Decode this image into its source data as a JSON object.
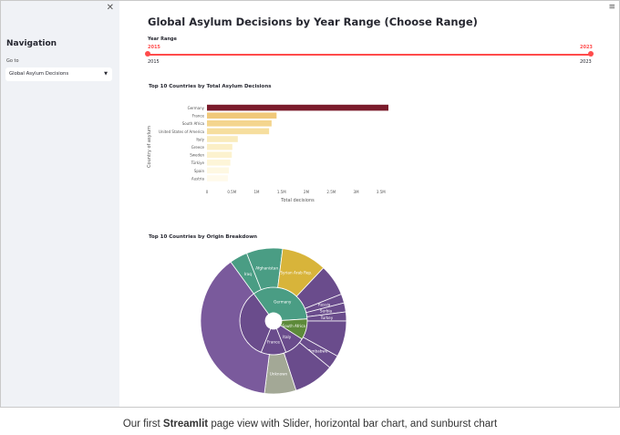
{
  "sidebar": {
    "close_icon": "close-icon",
    "nav_title": "Navigation",
    "goto_label": "Go to",
    "selected_page": "Global Asylum Decisions",
    "chevron_icon": "chevron-down-icon"
  },
  "main": {
    "menu_icon": "hamburger-menu-icon",
    "title": "Global Asylum Decisions by Year Range (Choose Range)"
  },
  "slider": {
    "label": "Year Range",
    "min": "2015",
    "max": "2023",
    "value_low": "2015",
    "value_high": "2023",
    "color": "#ff4b4b"
  },
  "bar_section_title": "Top 10 Countries by Total Asylum Decisions",
  "sunburst_section_title": "Top 10 Countries by Origin Breakdown",
  "caption": {
    "prefix": "Our first ",
    "bold": "Streamlit",
    "suffix": " page view with Slider, horizontal bar chart, and sunburst chart"
  },
  "chart_data": [
    {
      "type": "bar",
      "orientation": "horizontal",
      "categories": [
        "Germany",
        "France",
        "South Africa",
        "United States of America",
        "Italy",
        "Greece",
        "Sweden",
        "Türkiye",
        "Spain",
        "Austria"
      ],
      "values": [
        3650000,
        1400000,
        1300000,
        1250000,
        620000,
        510000,
        500000,
        470000,
        440000,
        420000
      ],
      "colors": [
        "#7b1c2c",
        "#f0c87a",
        "#f4d58e",
        "#f6de9e",
        "#f9ebbc",
        "#fbefc6",
        "#fcf2cf",
        "#fdf5d8",
        "#fef8e2",
        "#fffaeb"
      ],
      "xlabel": "Total decisions",
      "ylabel": "Country of asylum",
      "xticks": [
        "0",
        "0.5M",
        "1M",
        "1.5M",
        "2M",
        "2.5M",
        "3M",
        "3.5M"
      ],
      "xlim": [
        0,
        3650000
      ]
    },
    {
      "type": "sunburst",
      "inner": [
        {
          "label": "Germany",
          "value": 34,
          "color": "#4a9d84"
        },
        {
          "label": "South Africa",
          "value": 10,
          "color": "#5d8a3a"
        },
        {
          "label": "Italy",
          "value": 10,
          "color": "#6a4c8c"
        },
        {
          "label": "France",
          "value": 12,
          "color": "#6a4c8c"
        },
        {
          "label": "",
          "value": 34,
          "color": "#6a4c8c"
        }
      ],
      "outer": [
        {
          "label": "Iraq",
          "value": 4,
          "color": "#4a9d84"
        },
        {
          "label": "Afghanistan",
          "value": 8,
          "color": "#4a9d84"
        },
        {
          "label": "Syrian Arab Rep.",
          "value": 10,
          "color": "#d8b43a"
        },
        {
          "label": "",
          "value": 7,
          "color": "#6a4c8c"
        },
        {
          "label": "Russia",
          "value": 2,
          "color": "#6a4c8c"
        },
        {
          "label": "Serbia",
          "value": 2,
          "color": "#6a4c8c"
        },
        {
          "label": "Turkey",
          "value": 2,
          "color": "#6a4c8c"
        },
        {
          "label": "",
          "value": 8,
          "color": "#6a4c8c"
        },
        {
          "label": "Zimbabwe",
          "value": 3,
          "color": "#6a4c8c"
        },
        {
          "label": "",
          "value": 9,
          "color": "#6a4c8c"
        },
        {
          "label": "Unknown",
          "value": 7,
          "color": "#a3a896"
        },
        {
          "label": "",
          "value": 38,
          "color": "#7a5a9c"
        }
      ]
    }
  ]
}
